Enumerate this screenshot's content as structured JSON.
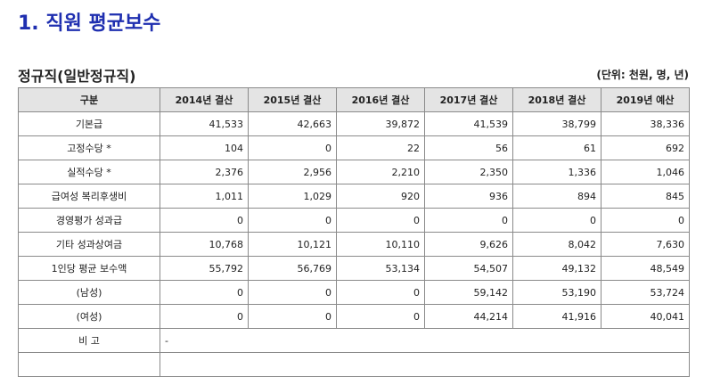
{
  "page_title": "1. 직원 평균보수",
  "section": {
    "subtitle": "정규직(일반정규직)",
    "unit_note": "(단위: 천원, 명, 년)"
  },
  "table": {
    "headers": [
      "구분",
      "2014년 결산",
      "2015년 결산",
      "2016년 결산",
      "2017년 결산",
      "2018년 결산",
      "2019년 예산"
    ],
    "rows": [
      {
        "label": "기본급",
        "values": [
          "41,533",
          "42,663",
          "39,872",
          "41,539",
          "38,799",
          "38,336"
        ]
      },
      {
        "label": "고정수당 *",
        "values": [
          "104",
          "0",
          "22",
          "56",
          "61",
          "692"
        ]
      },
      {
        "label": "실적수당 *",
        "values": [
          "2,376",
          "2,956",
          "2,210",
          "2,350",
          "1,336",
          "1,046"
        ]
      },
      {
        "label": "급여성 복리후생비",
        "values": [
          "1,011",
          "1,029",
          "920",
          "936",
          "894",
          "845"
        ]
      },
      {
        "label": "경영평가 성과급",
        "values": [
          "0",
          "0",
          "0",
          "0",
          "0",
          "0"
        ]
      },
      {
        "label": "기타 성과상여금",
        "values": [
          "10,768",
          "10,121",
          "10,110",
          "9,626",
          "8,042",
          "7,630"
        ]
      },
      {
        "label": "1인당 평균 보수액",
        "values": [
          "55,792",
          "56,769",
          "53,134",
          "54,507",
          "49,132",
          "48,549"
        ]
      },
      {
        "label": "(남성)",
        "values": [
          "0",
          "0",
          "0",
          "59,142",
          "53,190",
          "53,724"
        ]
      },
      {
        "label": "(여성)",
        "values": [
          "0",
          "0",
          "0",
          "44,214",
          "41,916",
          "40,041"
        ]
      }
    ],
    "remark": {
      "label": "비 고",
      "value": "-"
    }
  }
}
